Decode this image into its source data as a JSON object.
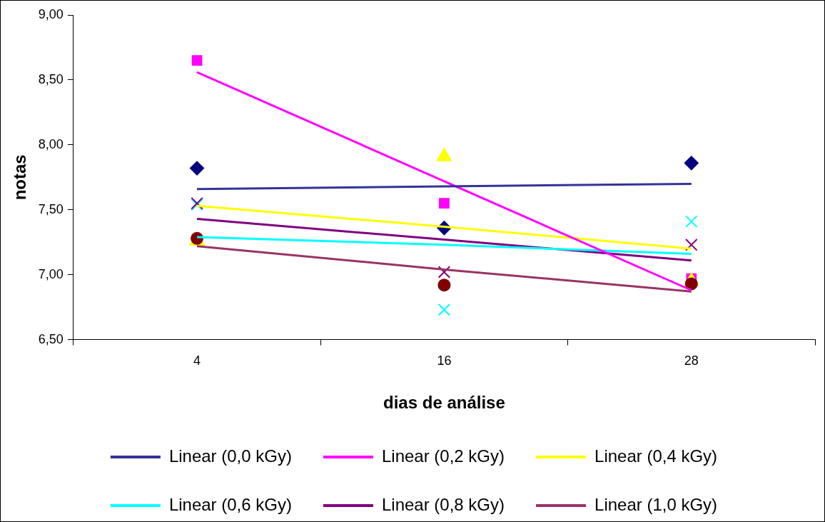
{
  "chart_data": {
    "type": "scatter",
    "xlabel": "dias de análise",
    "ylabel": "notas",
    "categories": [
      "4",
      "16",
      "28"
    ],
    "ylim": [
      6.5,
      9.0
    ],
    "yticks": [
      {
        "value": 6.5,
        "label": "6,50"
      },
      {
        "value": 7.0,
        "label": "7,00"
      },
      {
        "value": 7.5,
        "label": "7,50"
      },
      {
        "value": 8.0,
        "label": "8,00"
      },
      {
        "value": 8.5,
        "label": "8,50"
      },
      {
        "value": 9.0,
        "label": "9,00"
      }
    ],
    "grid": false,
    "legend": "bottom",
    "series": [
      {
        "type": "scatter",
        "color": "#000080",
        "marker": "diamond",
        "values": [
          7.82,
          7.36,
          7.86
        ]
      },
      {
        "type": "scatter",
        "color": "#ff00ff",
        "marker": "square",
        "values": [
          8.65,
          7.55,
          6.97
        ]
      },
      {
        "type": "scatter",
        "color": "#ffff00",
        "marker": "triangle",
        "values": [
          7.26,
          7.91,
          6.95
        ]
      },
      {
        "type": "scatter",
        "color": "#00ffff",
        "marker": "cross",
        "values": [
          7.54,
          6.73,
          7.41
        ]
      },
      {
        "type": "scatter",
        "color": "#800080",
        "marker": "cross",
        "values": [
          7.55,
          7.02,
          7.23
        ]
      },
      {
        "type": "scatter",
        "color": "#800000",
        "marker": "circle",
        "values": [
          7.28,
          6.92,
          6.93
        ]
      },
      {
        "type": "line",
        "name": "Linear (0,0 kGy)",
        "color": "#333399",
        "marker": "none",
        "values": [
          7.66,
          7.68,
          7.7
        ]
      },
      {
        "type": "line",
        "name": "Linear (0,2 kGy)",
        "color": "#ff00ff",
        "marker": "none",
        "values": [
          8.56,
          7.72,
          6.88
        ]
      },
      {
        "type": "line",
        "name": "Linear (0,4 kGy)",
        "color": "#ffff00",
        "marker": "none",
        "values": [
          7.53,
          7.37,
          7.2
        ]
      },
      {
        "type": "line",
        "name": "Linear (0,6 kGy)",
        "color": "#00ffff",
        "marker": "none",
        "values": [
          7.29,
          7.23,
          7.16
        ]
      },
      {
        "type": "line",
        "name": "Linear (0,8 kGy)",
        "color": "#800080",
        "marker": "none",
        "values": [
          7.43,
          7.27,
          7.11
        ]
      },
      {
        "type": "line",
        "name": "Linear (1,0 kGy)",
        "color": "#993366",
        "marker": "none",
        "values": [
          7.22,
          7.04,
          6.87
        ]
      }
    ]
  }
}
